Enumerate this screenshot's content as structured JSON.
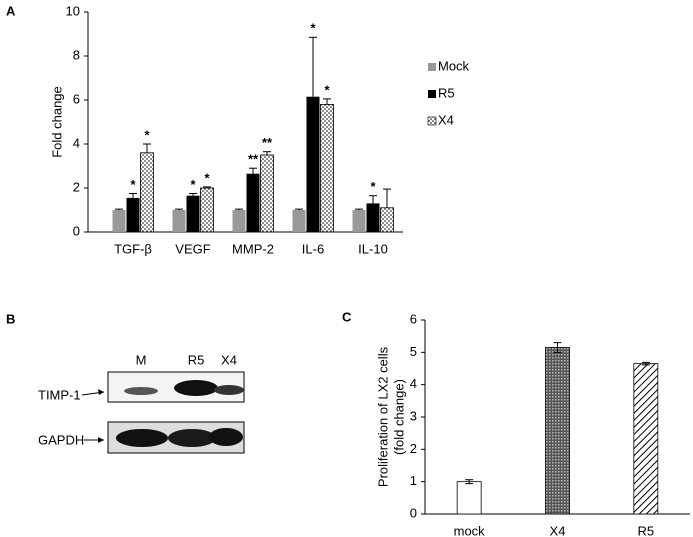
{
  "chart_data": [
    {
      "type": "bar",
      "panel": "A",
      "ylabel": [
        "Fold change"
      ],
      "categories": [
        "TGF-β",
        "VEGF",
        "MMP-2",
        "IL-6",
        "IL-10"
      ],
      "series": [
        {
          "name": "Mock",
          "color": "#999999",
          "values": [
            1,
            1,
            1,
            1,
            1
          ],
          "errors": [
            0.04,
            0.04,
            0.04,
            0.04,
            0.04
          ]
        },
        {
          "name": "R5",
          "color": "#000000",
          "values": [
            1.55,
            1.65,
            2.65,
            6.15,
            1.3
          ],
          "errors": [
            0.2,
            0.1,
            0.25,
            2.7,
            0.35
          ],
          "annotations": [
            "*",
            "*",
            "**",
            "*",
            "*"
          ]
        },
        {
          "name": "X4",
          "color": "#000000",
          "pattern": "dots",
          "values": [
            3.6,
            2.0,
            3.5,
            5.8,
            1.1
          ],
          "errors": [
            0.4,
            0.05,
            0.15,
            0.25,
            0.85
          ],
          "annotations": [
            "*",
            "*",
            "**",
            "*",
            null
          ]
        }
      ],
      "error_bars": "up",
      "legend": "right",
      "ylim": [
        0,
        10
      ],
      "yticks": [
        0,
        2,
        4,
        6,
        8,
        10
      ]
    },
    {
      "type": "bar",
      "panel": "C",
      "ylabel": [
        "Proliferation of LX2 cells",
        "(fold change)"
      ],
      "categories": [
        "mock",
        "X4",
        "R5"
      ],
      "series": [
        {
          "color": "#000000",
          "patterns": [
            "none",
            "crosshatch",
            "diagonal"
          ],
          "values": [
            1.0,
            5.15,
            4.65
          ],
          "errors": [
            0.06,
            0.15,
            0.04
          ]
        }
      ],
      "error_bars": "both",
      "ylim": [
        0,
        6
      ],
      "yticks": [
        0,
        1,
        2,
        3,
        4,
        5,
        6
      ]
    }
  ],
  "blot": {
    "panel": "B",
    "lanes": [
      "M",
      "R5",
      "X4"
    ],
    "rows": [
      "TIMP-1",
      "GAPDH"
    ]
  }
}
